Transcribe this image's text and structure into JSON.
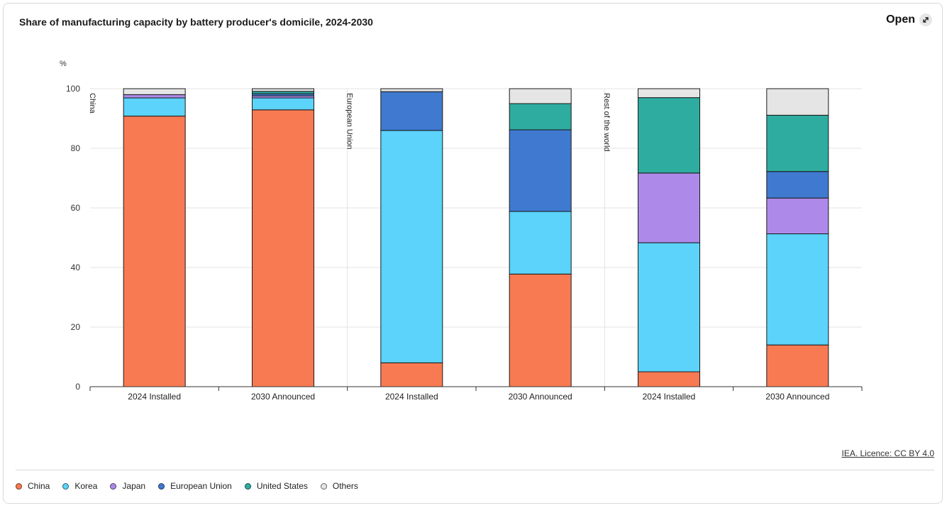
{
  "header": {
    "title": "Share of manufacturing capacity by battery producer's domicile, 2024-2030",
    "open_label": "Open"
  },
  "footer": {
    "licence": "IEA. Licence: CC BY 4.0"
  },
  "chart_data": {
    "type": "bar",
    "stacked": true,
    "ylabel": "%",
    "ylim": [
      0,
      100
    ],
    "yticks": [
      0,
      20,
      40,
      60,
      80,
      100
    ],
    "grid": true,
    "legend_position": "bottom",
    "groups": [
      {
        "label": "China",
        "categories": [
          "2024 Installed",
          "2030 Announced"
        ]
      },
      {
        "label": "European Union",
        "categories": [
          "2024 Installed",
          "2030 Announced"
        ]
      },
      {
        "label": "Rest of the world",
        "categories": [
          "2024 Installed",
          "2030 Announced"
        ]
      }
    ],
    "categories": [
      "2024 Installed",
      "2030 Announced",
      "2024 Installed",
      "2030 Announced",
      "2024 Installed",
      "2030 Announced"
    ],
    "series": [
      {
        "name": "China",
        "color": "#f87a52",
        "values": [
          90.8,
          92.9,
          8.0,
          37.8,
          5.0,
          14.0
        ]
      },
      {
        "name": "Korea",
        "color": "#5bd3fb",
        "values": [
          6.1,
          4.0,
          78.0,
          21.0,
          43.3,
          37.3
        ]
      },
      {
        "name": "Japan",
        "color": "#ad8ae9",
        "values": [
          1.1,
          0.7,
          0.0,
          0.0,
          23.4,
          12.0
        ]
      },
      {
        "name": "European Union",
        "color": "#3f7ad0",
        "values": [
          0.0,
          0.7,
          13.0,
          27.4,
          0.0,
          8.9
        ]
      },
      {
        "name": "United States",
        "color": "#2eaca0",
        "values": [
          0.0,
          0.8,
          0.0,
          8.8,
          25.3,
          18.9
        ]
      },
      {
        "name": "Others",
        "color": "#e5e5e5",
        "values": [
          2.0,
          0.9,
          1.0,
          5.0,
          3.0,
          8.9
        ]
      }
    ]
  }
}
